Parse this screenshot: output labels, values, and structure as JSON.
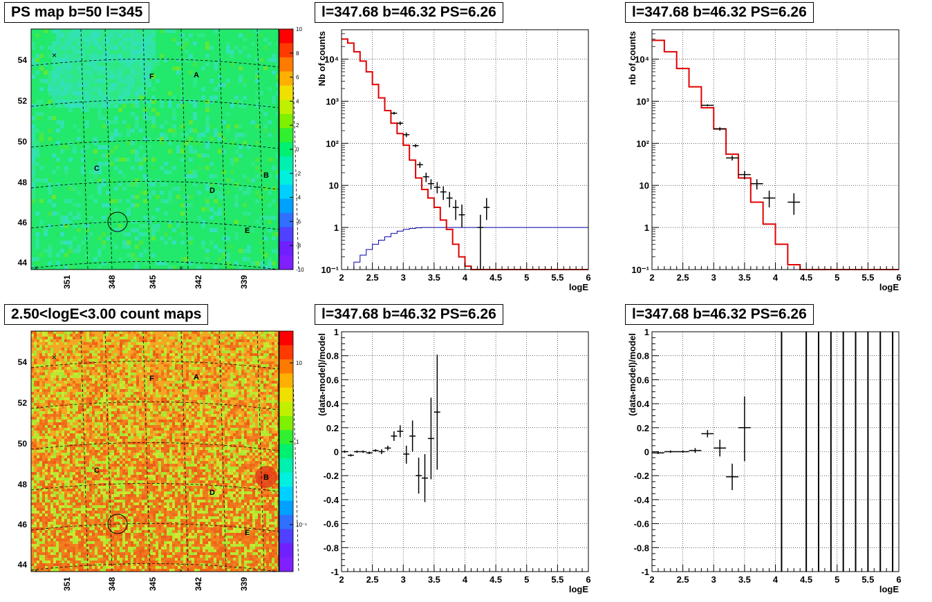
{
  "panels": {
    "map_ps": {
      "title": "PS map b=50 l=345",
      "colorbar_ticks": [
        "10",
        "8",
        "6",
        "4",
        "2",
        "0",
        "-2",
        "-4",
        "-6",
        "-8",
        "-10"
      ]
    },
    "spectrum_a": {
      "title": "l=347.68 b=46.32 PS=6.26"
    },
    "spectrum_b": {
      "title": "l=347.68 b=46.32 PS=6.26"
    },
    "map_counts": {
      "title": "2.50<logE<3.00 count maps",
      "colorbar_ticks": [
        "10",
        "1",
        "10⁻¹"
      ]
    },
    "residual_a": {
      "title": "l=347.68 b=46.32 PS=6.26"
    },
    "residual_b": {
      "title": "l=347.68 b=46.32 PS=6.26"
    }
  },
  "map_common": {
    "lat_labels": [
      "54",
      "52",
      "50",
      "48",
      "46",
      "44"
    ],
    "lon_labels": [
      "351",
      "348",
      "345",
      "342",
      "339"
    ],
    "sources": [
      "A",
      "B",
      "C",
      "D",
      "E",
      "F"
    ]
  },
  "chart_data": [
    {
      "type": "line",
      "xlabel": "logE",
      "ylabel": "Nb of counts",
      "xlim": [
        2,
        6
      ],
      "ylim": [
        0.1,
        50000
      ],
      "log_y": true,
      "grid": true,
      "x_ticks": [
        "2",
        "2.5",
        "3",
        "3.5",
        "4",
        "4.5",
        "5",
        "5.5",
        "6"
      ],
      "y_ticks": [
        "10⁻¹",
        "1",
        "10",
        "10²",
        "10³",
        "10⁴"
      ],
      "model_step": {
        "color": "#e00000",
        "edges": [
          2.0,
          2.1,
          2.2,
          2.3,
          2.4,
          2.5,
          2.6,
          2.7,
          2.8,
          2.9,
          3.0,
          3.1,
          3.2,
          3.3,
          3.4,
          3.5,
          3.6,
          3.7,
          3.8,
          3.9,
          4.0,
          4.1,
          4.2,
          4.3,
          6.0
        ],
        "values": [
          30000,
          24000,
          15000,
          9000,
          5000,
          2500,
          1200,
          600,
          300,
          170,
          90,
          40,
          15,
          8,
          5,
          3,
          1.5,
          0.9,
          0.4,
          0.2,
          0.12,
          0.06,
          0.03,
          0.1
        ]
      },
      "flat_line": {
        "color": "#0000aa",
        "edges": [
          2.0,
          2.1,
          2.2,
          2.3,
          2.4,
          2.5,
          2.6,
          2.7,
          2.8,
          2.9,
          3.0,
          3.1,
          3.2,
          3.3,
          3.4,
          3.5,
          6.0
        ],
        "values": [
          0.02,
          0.08,
          0.15,
          0.22,
          0.3,
          0.4,
          0.5,
          0.6,
          0.72,
          0.82,
          0.9,
          0.95,
          0.98,
          1.0,
          1.0,
          1.0,
          1.0
        ]
      },
      "data_points": [
        {
          "x": 2.85,
          "y": 520,
          "ylo": 480,
          "yhi": 560,
          "xerr": 0.05
        },
        {
          "x": 2.95,
          "y": 300,
          "ylo": 270,
          "yhi": 330,
          "xerr": 0.05
        },
        {
          "x": 3.05,
          "y": 160,
          "ylo": 140,
          "yhi": 180,
          "xerr": 0.05
        },
        {
          "x": 3.2,
          "y": 88,
          "ylo": 80,
          "yhi": 96,
          "xerr": 0.05
        },
        {
          "x": 3.27,
          "y": 31,
          "ylo": 26,
          "yhi": 36,
          "xerr": 0.05
        },
        {
          "x": 3.37,
          "y": 16,
          "ylo": 12,
          "yhi": 20,
          "xerr": 0.05
        },
        {
          "x": 3.45,
          "y": 11,
          "ylo": 8,
          "yhi": 14,
          "xerr": 0.05
        },
        {
          "x": 3.55,
          "y": 9,
          "ylo": 6.5,
          "yhi": 12,
          "xerr": 0.05
        },
        {
          "x": 3.65,
          "y": 7,
          "ylo": 4.5,
          "yhi": 9.5,
          "xerr": 0.05
        },
        {
          "x": 3.75,
          "y": 5,
          "ylo": 3,
          "yhi": 7,
          "xerr": 0.05
        },
        {
          "x": 3.85,
          "y": 3,
          "ylo": 1.5,
          "yhi": 4.5,
          "xerr": 0.05
        },
        {
          "x": 3.95,
          "y": 2,
          "ylo": 1,
          "yhi": 3.5,
          "xerr": 0.05
        },
        {
          "x": 4.25,
          "y": 1,
          "ylo": 0.1,
          "yhi": 2,
          "xerr": 0.05
        },
        {
          "x": 4.35,
          "y": 3,
          "ylo": 1.5,
          "yhi": 5,
          "xerr": 0.05
        }
      ]
    },
    {
      "type": "line",
      "xlabel": "logE",
      "ylabel": "nb of counts",
      "xlim": [
        2,
        6
      ],
      "ylim": [
        0.1,
        50000
      ],
      "log_y": true,
      "grid": true,
      "x_ticks": [
        "2",
        "2.5",
        "3",
        "3.5",
        "4",
        "4.5",
        "5",
        "5.5",
        "6"
      ],
      "y_ticks": [
        "10⁻¹",
        "1",
        "10",
        "10²",
        "10³",
        "10⁴"
      ],
      "model_step": {
        "color": "#e00000",
        "edges": [
          2.0,
          2.2,
          2.4,
          2.6,
          2.8,
          3.0,
          3.2,
          3.4,
          3.6,
          3.8,
          4.0,
          4.2,
          4.4,
          6.0
        ],
        "values": [
          28000,
          15000,
          6000,
          2200,
          700,
          220,
          55,
          15,
          4,
          1.2,
          0.4,
          0.13,
          0.1
        ]
      },
      "data_points": [
        {
          "x": 2.9,
          "y": 800,
          "ylo": 760,
          "yhi": 840,
          "xerr": 0.1
        },
        {
          "x": 3.1,
          "y": 220,
          "ylo": 200,
          "yhi": 240,
          "xerr": 0.1
        },
        {
          "x": 3.3,
          "y": 45,
          "ylo": 39,
          "yhi": 51,
          "xerr": 0.1
        },
        {
          "x": 3.5,
          "y": 18,
          "ylo": 14,
          "yhi": 22,
          "xerr": 0.1
        },
        {
          "x": 3.7,
          "y": 11,
          "ylo": 8,
          "yhi": 14,
          "xerr": 0.1
        },
        {
          "x": 3.9,
          "y": 5,
          "ylo": 3,
          "yhi": 7.5,
          "xerr": 0.1
        },
        {
          "x": 4.3,
          "y": 4,
          "ylo": 2,
          "yhi": 6.5,
          "xerr": 0.1
        }
      ]
    },
    {
      "type": "scatter",
      "xlabel": "logE",
      "ylabel": "(data-model)/model",
      "xlim": [
        2,
        6
      ],
      "ylim": [
        -1,
        1
      ],
      "grid": true,
      "x_ticks": [
        "2",
        "2.5",
        "3",
        "3.5",
        "4",
        "4.5",
        "5",
        "5.5",
        "6"
      ],
      "y_ticks": [
        "-1",
        "-0.8",
        "-0.6",
        "-0.4",
        "-0.2",
        "0",
        "0.2",
        "0.4",
        "0.6",
        "0.8",
        "1"
      ],
      "data_points": [
        {
          "x": 2.05,
          "y": 0.0,
          "ylo": -0.01,
          "yhi": 0.01,
          "xerr": 0.05
        },
        {
          "x": 2.15,
          "y": -0.03,
          "ylo": -0.04,
          "yhi": -0.02,
          "xerr": 0.05
        },
        {
          "x": 2.25,
          "y": 0.0,
          "ylo": -0.01,
          "yhi": 0.01,
          "xerr": 0.05
        },
        {
          "x": 2.35,
          "y": 0.0,
          "ylo": -0.01,
          "yhi": 0.01,
          "xerr": 0.05
        },
        {
          "x": 2.45,
          "y": -0.01,
          "ylo": -0.02,
          "yhi": 0.0,
          "xerr": 0.05
        },
        {
          "x": 2.55,
          "y": 0.01,
          "ylo": 0.0,
          "yhi": 0.02,
          "xerr": 0.05
        },
        {
          "x": 2.65,
          "y": 0.0,
          "ylo": -0.02,
          "yhi": 0.02,
          "xerr": 0.05
        },
        {
          "x": 2.75,
          "y": 0.03,
          "ylo": 0.01,
          "yhi": 0.05,
          "xerr": 0.05
        },
        {
          "x": 2.85,
          "y": 0.13,
          "ylo": 0.09,
          "yhi": 0.17,
          "xerr": 0.05
        },
        {
          "x": 2.95,
          "y": 0.17,
          "ylo": 0.12,
          "yhi": 0.22,
          "xerr": 0.05
        },
        {
          "x": 3.05,
          "y": -0.02,
          "ylo": -0.1,
          "yhi": 0.05,
          "xerr": 0.05
        },
        {
          "x": 3.15,
          "y": 0.13,
          "ylo": 0.0,
          "yhi": 0.26,
          "xerr": 0.05
        },
        {
          "x": 3.25,
          "y": -0.2,
          "ylo": -0.35,
          "yhi": -0.05,
          "xerr": 0.05
        },
        {
          "x": 3.35,
          "y": -0.22,
          "ylo": -0.42,
          "yhi": -0.02,
          "xerr": 0.05
        },
        {
          "x": 3.45,
          "y": 0.11,
          "ylo": -0.23,
          "yhi": 0.45,
          "xerr": 0.05
        },
        {
          "x": 3.55,
          "y": 0.33,
          "ylo": -0.15,
          "yhi": 0.81,
          "xerr": 0.05
        }
      ]
    },
    {
      "type": "scatter",
      "xlabel": "logE",
      "ylabel": "(data-model)/model",
      "xlim": [
        2,
        6
      ],
      "ylim": [
        -1,
        1
      ],
      "grid": true,
      "x_ticks": [
        "2",
        "2.5",
        "3",
        "3.5",
        "4",
        "4.5",
        "5",
        "5.5",
        "6"
      ],
      "y_ticks": [
        "-1",
        "-0.8",
        "-0.6",
        "-0.4",
        "-0.2",
        "0",
        "0.2",
        "0.4",
        "0.6",
        "0.8",
        "1"
      ],
      "data_points": [
        {
          "x": 2.1,
          "y": -0.01,
          "ylo": -0.02,
          "yhi": 0.0,
          "xerr": 0.1
        },
        {
          "x": 2.3,
          "y": 0.0,
          "ylo": -0.01,
          "yhi": 0.01,
          "xerr": 0.1
        },
        {
          "x": 2.5,
          "y": 0.0,
          "ylo": -0.01,
          "yhi": 0.01,
          "xerr": 0.1
        },
        {
          "x": 2.7,
          "y": 0.01,
          "ylo": -0.01,
          "yhi": 0.03,
          "xerr": 0.1
        },
        {
          "x": 2.9,
          "y": 0.15,
          "ylo": 0.12,
          "yhi": 0.18,
          "xerr": 0.1
        },
        {
          "x": 3.1,
          "y": 0.03,
          "ylo": -0.04,
          "yhi": 0.1,
          "xerr": 0.1
        },
        {
          "x": 3.3,
          "y": -0.21,
          "ylo": -0.32,
          "yhi": -0.1,
          "xerr": 0.1
        },
        {
          "x": 3.5,
          "y": 0.2,
          "ylo": -0.08,
          "yhi": 0.46,
          "xerr": 0.1
        }
      ],
      "vertical_bars_x": [
        4.1,
        4.5,
        4.7,
        4.9,
        5.1,
        5.3,
        5.5,
        5.7,
        5.9
      ]
    }
  ]
}
